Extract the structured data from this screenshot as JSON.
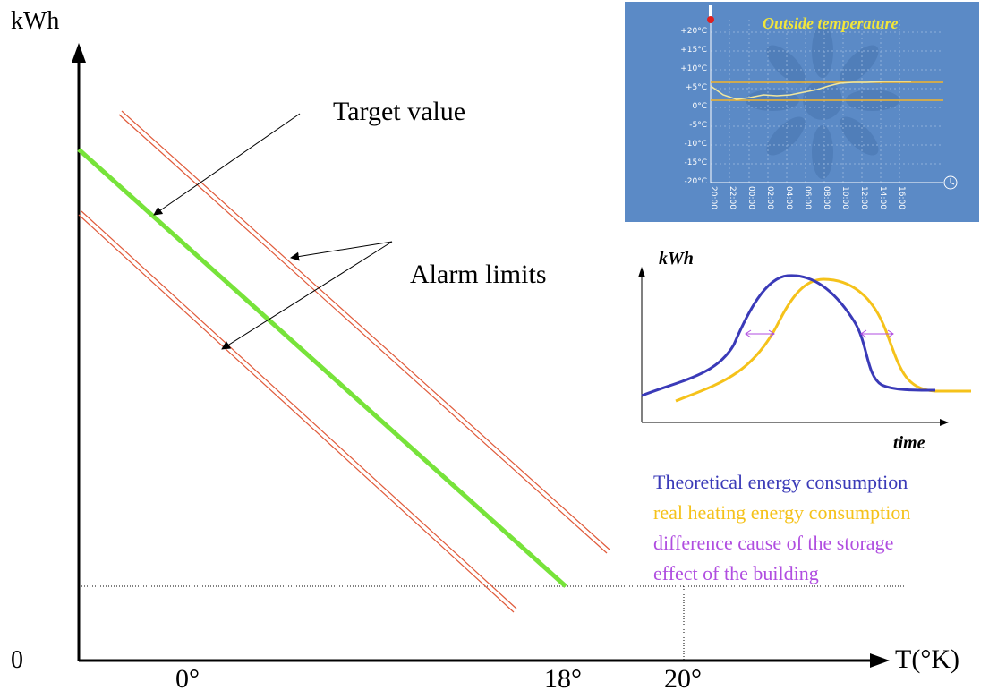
{
  "main": {
    "y_axis_label": "kWh",
    "x_axis_label": "T(°K)",
    "origin_label": "0",
    "x_ticks": [
      "0°",
      "18°",
      "20°"
    ],
    "annotations": {
      "target": "Target value",
      "alarm": "Alarm limits"
    }
  },
  "temperature_panel": {
    "title": "Outside temperature",
    "y_ticks": [
      "+20°C",
      "+15°C",
      "+10°C",
      "+5°C",
      "0°C",
      "-5°C",
      "-10°C",
      "-15°C",
      "-20°C"
    ],
    "x_ticks": [
      "20:00",
      "22:00",
      "00:00",
      "02:00",
      "04:00",
      "06:00",
      "08:00",
      "10:00",
      "12:00",
      "14:00",
      "16:00"
    ]
  },
  "inset": {
    "y_label": "kWh",
    "x_label": "time"
  },
  "legend": {
    "line1": "Theoretical energy consumption",
    "line2": "real heating energy consumption",
    "line3": "difference cause of the storage",
    "line4": "effect of the building"
  },
  "colors": {
    "target": "#77e33a",
    "alarm": "#e05a3a",
    "theoretical": "#3a3ab8",
    "real": "#f5c21a",
    "difference": "#b04de0",
    "panel_bg": "#5b8ac6",
    "panel_title": "#f2e63a"
  }
}
